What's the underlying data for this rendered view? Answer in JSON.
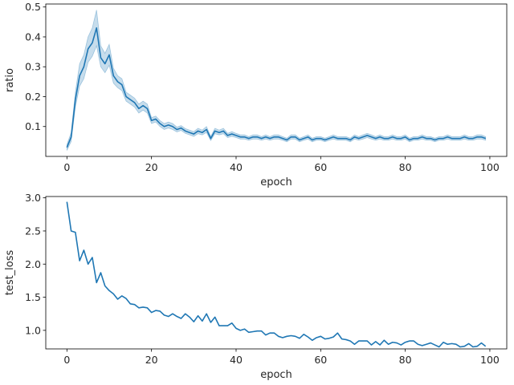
{
  "chart_data": [
    {
      "type": "line",
      "xlabel": "epoch",
      "ylabel": "ratio",
      "xlim": [
        -5,
        104
      ],
      "ylim": [
        0.0,
        0.51
      ],
      "xticks": [
        0,
        20,
        40,
        60,
        80,
        100
      ],
      "yticks": [
        0.1,
        0.2,
        0.3,
        0.4,
        0.5
      ],
      "xtick_labels": [
        "0",
        "20",
        "40",
        "60",
        "80",
        "100"
      ],
      "ytick_labels": [
        "0.1",
        "0.2",
        "0.3",
        "0.4",
        "0.5"
      ],
      "grid": false,
      "line_color": "#1f77b4",
      "band_color": "#1f77b4",
      "band_opacity": 0.25,
      "x": [
        0,
        1,
        2,
        3,
        4,
        5,
        6,
        7,
        8,
        9,
        10,
        11,
        12,
        13,
        14,
        15,
        16,
        17,
        18,
        19,
        20,
        21,
        22,
        23,
        24,
        25,
        26,
        27,
        28,
        29,
        30,
        31,
        32,
        33,
        34,
        35,
        36,
        37,
        38,
        39,
        40,
        41,
        42,
        43,
        44,
        45,
        46,
        47,
        48,
        49,
        50,
        51,
        52,
        53,
        54,
        55,
        56,
        57,
        58,
        59,
        60,
        61,
        62,
        63,
        64,
        65,
        66,
        67,
        68,
        69,
        70,
        71,
        72,
        73,
        74,
        75,
        76,
        77,
        78,
        79,
        80,
        81,
        82,
        83,
        84,
        85,
        86,
        87,
        88,
        89,
        90,
        91,
        92,
        93,
        94,
        95,
        96,
        97,
        98,
        99
      ],
      "y": [
        0.03,
        0.065,
        0.19,
        0.27,
        0.3,
        0.36,
        0.38,
        0.43,
        0.33,
        0.31,
        0.34,
        0.27,
        0.25,
        0.24,
        0.2,
        0.19,
        0.18,
        0.16,
        0.17,
        0.16,
        0.12,
        0.125,
        0.11,
        0.1,
        0.105,
        0.1,
        0.09,
        0.095,
        0.085,
        0.08,
        0.075,
        0.085,
        0.08,
        0.09,
        0.06,
        0.085,
        0.08,
        0.085,
        0.07,
        0.075,
        0.07,
        0.065,
        0.065,
        0.06,
        0.065,
        0.065,
        0.06,
        0.065,
        0.06,
        0.065,
        0.065,
        0.06,
        0.055,
        0.065,
        0.065,
        0.055,
        0.06,
        0.065,
        0.055,
        0.06,
        0.06,
        0.055,
        0.06,
        0.065,
        0.06,
        0.06,
        0.06,
        0.055,
        0.065,
        0.06,
        0.065,
        0.07,
        0.065,
        0.06,
        0.065,
        0.06,
        0.06,
        0.065,
        0.06,
        0.06,
        0.065,
        0.055,
        0.06,
        0.06,
        0.065,
        0.06,
        0.06,
        0.055,
        0.06,
        0.06,
        0.065,
        0.06,
        0.06,
        0.06,
        0.065,
        0.06,
        0.06,
        0.065,
        0.065,
        0.06
      ],
      "y_low": [
        0.02,
        0.05,
        0.165,
        0.235,
        0.26,
        0.315,
        0.335,
        0.37,
        0.3,
        0.28,
        0.305,
        0.245,
        0.23,
        0.22,
        0.185,
        0.175,
        0.165,
        0.145,
        0.155,
        0.145,
        0.11,
        0.115,
        0.1,
        0.09,
        0.095,
        0.09,
        0.082,
        0.087,
        0.077,
        0.072,
        0.067,
        0.076,
        0.072,
        0.08,
        0.053,
        0.076,
        0.072,
        0.076,
        0.063,
        0.067,
        0.063,
        0.058,
        0.058,
        0.054,
        0.058,
        0.058,
        0.054,
        0.058,
        0.054,
        0.058,
        0.058,
        0.054,
        0.049,
        0.058,
        0.058,
        0.049,
        0.054,
        0.058,
        0.049,
        0.054,
        0.054,
        0.049,
        0.054,
        0.058,
        0.054,
        0.054,
        0.054,
        0.049,
        0.058,
        0.054,
        0.058,
        0.063,
        0.058,
        0.054,
        0.058,
        0.054,
        0.054,
        0.058,
        0.054,
        0.054,
        0.058,
        0.049,
        0.054,
        0.054,
        0.058,
        0.054,
        0.054,
        0.049,
        0.054,
        0.054,
        0.058,
        0.054,
        0.054,
        0.054,
        0.058,
        0.054,
        0.054,
        0.058,
        0.058,
        0.054
      ],
      "y_high": [
        0.04,
        0.08,
        0.215,
        0.31,
        0.34,
        0.4,
        0.43,
        0.49,
        0.37,
        0.345,
        0.375,
        0.295,
        0.27,
        0.26,
        0.215,
        0.205,
        0.195,
        0.175,
        0.185,
        0.175,
        0.13,
        0.135,
        0.12,
        0.11,
        0.115,
        0.11,
        0.098,
        0.103,
        0.093,
        0.088,
        0.083,
        0.094,
        0.088,
        0.1,
        0.067,
        0.094,
        0.088,
        0.094,
        0.077,
        0.083,
        0.077,
        0.072,
        0.072,
        0.066,
        0.072,
        0.072,
        0.066,
        0.072,
        0.066,
        0.072,
        0.072,
        0.066,
        0.061,
        0.072,
        0.072,
        0.061,
        0.066,
        0.072,
        0.061,
        0.066,
        0.066,
        0.061,
        0.066,
        0.072,
        0.066,
        0.066,
        0.066,
        0.061,
        0.072,
        0.066,
        0.072,
        0.077,
        0.072,
        0.066,
        0.072,
        0.066,
        0.066,
        0.072,
        0.066,
        0.066,
        0.072,
        0.061,
        0.066,
        0.066,
        0.072,
        0.066,
        0.066,
        0.061,
        0.066,
        0.066,
        0.072,
        0.066,
        0.066,
        0.066,
        0.072,
        0.066,
        0.066,
        0.072,
        0.072,
        0.066
      ]
    },
    {
      "type": "line",
      "xlabel": "epoch",
      "ylabel": "test_loss",
      "xlim": [
        -5,
        104
      ],
      "ylim": [
        0.72,
        3.02
      ],
      "xticks": [
        0,
        20,
        40,
        60,
        80,
        100
      ],
      "yticks": [
        1.0,
        1.5,
        2.0,
        2.5,
        3.0
      ],
      "xtick_labels": [
        "0",
        "20",
        "40",
        "60",
        "80",
        "100"
      ],
      "ytick_labels": [
        "1.0",
        "1.5",
        "2.0",
        "2.5",
        "3.0"
      ],
      "grid": false,
      "line_color": "#1f77b4",
      "x": [
        0,
        1,
        2,
        3,
        4,
        5,
        6,
        7,
        8,
        9,
        10,
        11,
        12,
        13,
        14,
        15,
        16,
        17,
        18,
        19,
        20,
        21,
        22,
        23,
        24,
        25,
        26,
        27,
        28,
        29,
        30,
        31,
        32,
        33,
        34,
        35,
        36,
        37,
        38,
        39,
        40,
        41,
        42,
        43,
        44,
        45,
        46,
        47,
        48,
        49,
        50,
        51,
        52,
        53,
        54,
        55,
        56,
        57,
        58,
        59,
        60,
        61,
        62,
        63,
        64,
        65,
        66,
        67,
        68,
        69,
        70,
        71,
        72,
        73,
        74,
        75,
        76,
        77,
        78,
        79,
        80,
        81,
        82,
        83,
        84,
        85,
        86,
        87,
        88,
        89,
        90,
        91,
        92,
        93,
        94,
        95,
        96,
        97,
        98,
        99
      ],
      "y": [
        2.94,
        2.5,
        2.48,
        2.05,
        2.21,
        2.0,
        2.1,
        1.72,
        1.87,
        1.67,
        1.6,
        1.55,
        1.47,
        1.52,
        1.48,
        1.4,
        1.39,
        1.34,
        1.35,
        1.34,
        1.27,
        1.3,
        1.29,
        1.23,
        1.21,
        1.25,
        1.21,
        1.18,
        1.25,
        1.2,
        1.13,
        1.22,
        1.14,
        1.25,
        1.12,
        1.2,
        1.07,
        1.07,
        1.07,
        1.11,
        1.03,
        1.0,
        1.02,
        0.97,
        0.98,
        0.99,
        0.99,
        0.93,
        0.96,
        0.96,
        0.91,
        0.89,
        0.91,
        0.92,
        0.91,
        0.88,
        0.94,
        0.9,
        0.85,
        0.89,
        0.91,
        0.87,
        0.88,
        0.9,
        0.96,
        0.87,
        0.86,
        0.84,
        0.79,
        0.84,
        0.84,
        0.84,
        0.78,
        0.83,
        0.78,
        0.85,
        0.79,
        0.82,
        0.81,
        0.78,
        0.82,
        0.84,
        0.84,
        0.79,
        0.77,
        0.79,
        0.81,
        0.78,
        0.75,
        0.82,
        0.79,
        0.8,
        0.79,
        0.75,
        0.76,
        0.8,
        0.75,
        0.76,
        0.81,
        0.76
      ]
    }
  ]
}
